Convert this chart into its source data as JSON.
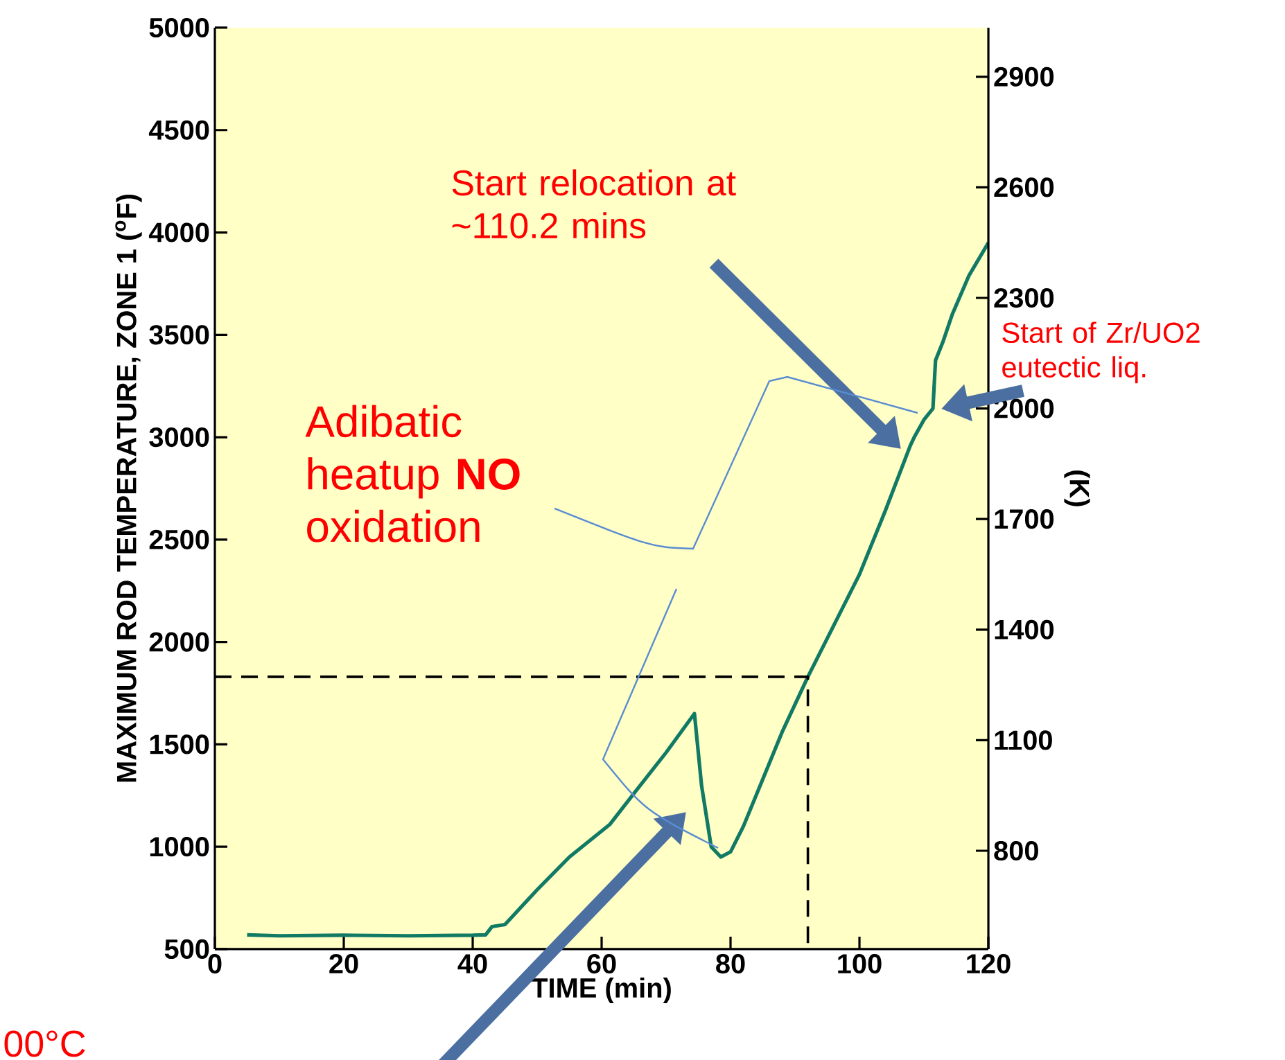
{
  "chart_data": {
    "type": "line",
    "xlabel": "TIME (min)",
    "ylabel": "MAXIMUM ROD TEMPERATURE, ZONE 1 ($^{o}$F)",
    "y2label": "(K)",
    "xlim": [
      0,
      120
    ],
    "xticks": [
      0,
      20,
      40,
      60,
      80,
      100,
      120
    ],
    "ylim": [
      500,
      5000
    ],
    "yticks": [
      500,
      1000,
      1500,
      2000,
      2500,
      3000,
      3500,
      4000,
      4500,
      5000
    ],
    "y2lim": [
      533.15,
      3033.15
    ],
    "y2ticks": [
      800,
      1100,
      1400,
      1700,
      2000,
      2300,
      2600,
      2900
    ],
    "series": [
      {
        "color": "#117a65",
        "line_style": "solid",
        "x": [
          5,
          10,
          20,
          30,
          40,
          42,
          43,
          45,
          50,
          55,
          61.3,
          65,
          70,
          74.4,
          75.5,
          77,
          78.5,
          80,
          82,
          85,
          88,
          92,
          96,
          100,
          104,
          107.9,
          108.5,
          110,
          111.4,
          111.8,
          113,
          114.4,
          117,
          120
        ],
        "values": [
          570,
          565,
          568,
          565,
          568,
          570,
          610,
          620,
          790,
          950,
          1110,
          1260,
          1460,
          1650,
          1300,
          1000,
          950,
          975,
          1100,
          1330,
          1560,
          1830,
          2080,
          2330,
          2640,
          2960,
          3000,
          3085,
          3140,
          3375,
          3470,
          3600,
          3790,
          3950
        ]
      },
      {
        "color": "#000000",
        "line_style": "dashed",
        "x": [
          0,
          92,
          92
        ],
        "values": [
          1830,
          1830,
          500
        ]
      }
    ],
    "annotations": [
      "Start relocation at ~110.2 mins",
      "Start of Zr/UO2 eutectic liq.",
      "Adibatic heatup **NO** oxidation",
      "00°C"
    ]
  }
}
